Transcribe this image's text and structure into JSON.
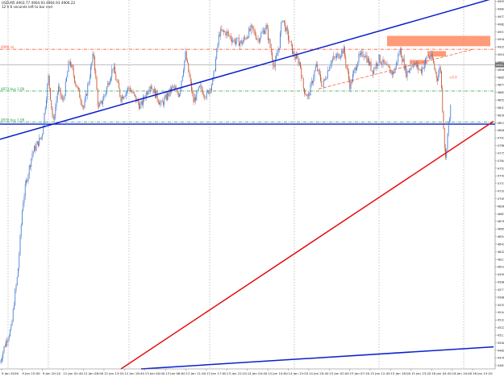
{
  "header": {
    "symbol_line": "USD,M5  4903.77 4904.93 4904.93 4906.22",
    "timer_line": "12 h 6 seconds left to bar end"
  },
  "colors": {
    "background": "#ffffff",
    "grid": "#aaaaaa",
    "candle_up": "#4a7fd6",
    "candle_down": "#c85a3a",
    "trend_blue": "#0a1fd0",
    "trend_red": "#e21010",
    "level_red": "#ff5a3a",
    "level_green": "#2e9e45",
    "level_blue": "#0a1fd0",
    "zone": "#ff8a60",
    "price_box": "#707070"
  },
  "chart_data": {
    "type": "candlestick",
    "ylim": [
      4462,
      4997
    ],
    "price_ticks": [
      "4995",
      "4984",
      "4973",
      "4962",
      "4951",
      "4940",
      "4929",
      "4918",
      "4907",
      "4896",
      "4885",
      "4874",
      "4863",
      "4852",
      "4841",
      "4830",
      "4819",
      "4808",
      "4797",
      "4786",
      "4775",
      "4764",
      "4753",
      "4742",
      "4731",
      "4720",
      "4709",
      "4698",
      "4687",
      "4676",
      "4665",
      "4654",
      "4643",
      "4632",
      "4621",
      "4610",
      "4599",
      "4588",
      "4577",
      "4566",
      "4555",
      "4544",
      "4533",
      "4522",
      "4511",
      "4500",
      "4489",
      "4478",
      "4467"
    ],
    "time_labels": [
      "9 Jan 2026",
      "9 Jan 15:00",
      "9 Jan 20:10",
      "12 Jan 02:40",
      "12 Jan 08:00",
      "12 Jan 13:20",
      "12 Jan 18:40",
      "13 Jan 00:00",
      "13 Jan 06:00",
      "13 Jan 11:40",
      "13 Jan 17:00",
      "13 Jan 22:20",
      "14 Jan 04:40",
      "14 Jan 10:00",
      "14 Jan 15:20",
      "14 Jan 20:40",
      "15 Jan 02:00",
      "15 Jan 07:20",
      "15 Jan 12:40",
      "15 Jan 18:00",
      "15 Jan 23:20",
      "16 Jan 04:40",
      "16 Jan 10:00",
      "16 Jan 15:20"
    ],
    "series_anchors": [
      [
        0,
        4472
      ],
      [
        5,
        4493
      ],
      [
        10,
        4510
      ],
      [
        14,
        4520
      ],
      [
        18,
        4565
      ],
      [
        22,
        4600
      ],
      [
        28,
        4700
      ],
      [
        32,
        4730
      ],
      [
        40,
        4775
      ],
      [
        52,
        4800
      ],
      [
        60,
        4885
      ],
      [
        66,
        4818
      ],
      [
        72,
        4870
      ],
      [
        78,
        4848
      ],
      [
        86,
        4910
      ],
      [
        96,
        4868
      ],
      [
        104,
        4840
      ],
      [
        116,
        4920
      ],
      [
        122,
        4838
      ],
      [
        130,
        4860
      ],
      [
        140,
        4900
      ],
      [
        150,
        4855
      ],
      [
        160,
        4870
      ],
      [
        174,
        4842
      ],
      [
        186,
        4875
      ],
      [
        200,
        4845
      ],
      [
        214,
        4870
      ],
      [
        222,
        4860
      ],
      [
        230,
        4918
      ],
      [
        240,
        4850
      ],
      [
        248,
        4870
      ],
      [
        256,
        4858
      ],
      [
        264,
        4880
      ],
      [
        272,
        4950
      ],
      [
        280,
        4950
      ],
      [
        290,
        4938
      ],
      [
        300,
        4935
      ],
      [
        312,
        4956
      ],
      [
        320,
        4940
      ],
      [
        330,
        4958
      ],
      [
        340,
        4900
      ],
      [
        346,
        4930
      ],
      [
        350,
        4972
      ],
      [
        356,
        4948
      ],
      [
        364,
        4918
      ],
      [
        372,
        4905
      ],
      [
        376,
        4870
      ],
      [
        382,
        4855
      ],
      [
        392,
        4902
      ],
      [
        400,
        4872
      ],
      [
        410,
        4908
      ],
      [
        418,
        4915
      ],
      [
        426,
        4925
      ],
      [
        434,
        4872
      ],
      [
        444,
        4912
      ],
      [
        452,
        4920
      ],
      [
        462,
        4894
      ],
      [
        470,
        4912
      ],
      [
        480,
        4898
      ],
      [
        488,
        4890
      ],
      [
        496,
        4925
      ],
      [
        504,
        4890
      ],
      [
        512,
        4906
      ],
      [
        522,
        4894
      ],
      [
        530,
        4915
      ],
      [
        536,
        4912
      ],
      [
        542,
        4882
      ],
      [
        546,
        4902
      ],
      [
        549,
        4835
      ],
      [
        551,
        4795
      ],
      [
        552,
        4758
      ],
      [
        554,
        4790
      ],
      [
        556,
        4815
      ],
      [
        559,
        4842
      ]
    ],
    "current_price": "4902.8",
    "horizontal_levels": [
      {
        "label": "4999 rsi",
        "price": 4925.5,
        "style": "dash-dot",
        "color": "#ff5a3a"
      },
      {
        "label": "4873 buy 1.08",
        "price": 4865,
        "style": "dash-dot",
        "color": "#2e9e45"
      },
      {
        "label": "4830 buy 1.08",
        "price": 4820,
        "style": "dash-dot",
        "color": "#2e9e45"
      },
      {
        "label": "",
        "price": 4817,
        "style": "solid",
        "color": "#0a1fd0"
      }
    ],
    "trendlines": [
      {
        "color": "#0a1fd0",
        "from": [
          0,
          4795
        ],
        "to": [
          608,
          4998
        ]
      },
      {
        "color": "#0a1fd0",
        "from": [
          175,
          4462
        ],
        "to": [
          612,
          4494
        ]
      },
      {
        "color": "#e21010",
        "from": [
          150,
          4462
        ],
        "to": [
          612,
          4821
        ]
      },
      {
        "color": "#ff5a3a",
        "dashed": true,
        "from": [
          395,
          4868
        ],
        "to": [
          585,
          4925
        ]
      }
    ],
    "zones": [
      {
        "from": [
          480,
          4930
        ],
        "to": [
          608,
          4945
        ]
      },
      {
        "from": [
          530,
          4915
        ],
        "to": [
          553,
          4923
        ]
      },
      {
        "from": [
          508,
          4904
        ],
        "to": [
          530,
          4910
        ]
      }
    ],
    "annotations": [
      {
        "text": "+0.0",
        "price": 4883,
        "time": 557
      }
    ],
    "grid_times": [
      10,
      60,
      160,
      260,
      365,
      470,
      575
    ]
  }
}
